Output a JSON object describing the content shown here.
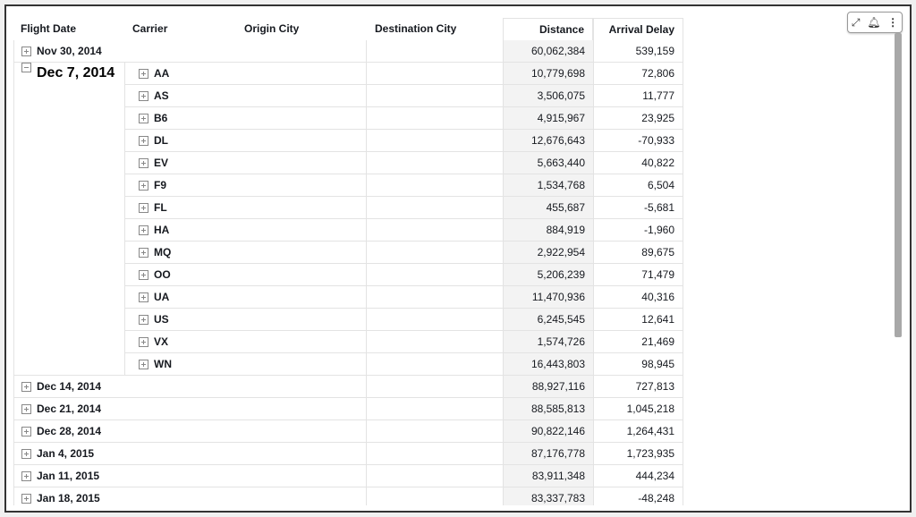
{
  "columns": {
    "flight_date": "Flight Date",
    "carrier": "Carrier",
    "origin_city": "Origin City",
    "destination_city": "Destination City",
    "distance": "Distance",
    "arrival_delay": "Arrival Delay"
  },
  "rows": [
    {
      "date": "Nov 30, 2014",
      "expanded": false,
      "distance": "60,062,384",
      "delay": "539,159"
    },
    {
      "date": "Dec 7, 2014",
      "expanded": true,
      "carriers": [
        {
          "carrier": "AA",
          "distance": "10,779,698",
          "delay": "72,806"
        },
        {
          "carrier": "AS",
          "distance": "3,506,075",
          "delay": "11,777"
        },
        {
          "carrier": "B6",
          "distance": "4,915,967",
          "delay": "23,925"
        },
        {
          "carrier": "DL",
          "distance": "12,676,643",
          "delay": "-70,933"
        },
        {
          "carrier": "EV",
          "distance": "5,663,440",
          "delay": "40,822"
        },
        {
          "carrier": "F9",
          "distance": "1,534,768",
          "delay": "6,504"
        },
        {
          "carrier": "FL",
          "distance": "455,687",
          "delay": "-5,681"
        },
        {
          "carrier": "HA",
          "distance": "884,919",
          "delay": "-1,960"
        },
        {
          "carrier": "MQ",
          "distance": "2,922,954",
          "delay": "89,675"
        },
        {
          "carrier": "OO",
          "distance": "5,206,239",
          "delay": "71,479"
        },
        {
          "carrier": "UA",
          "distance": "11,470,936",
          "delay": "40,316"
        },
        {
          "carrier": "US",
          "distance": "6,245,545",
          "delay": "12,641"
        },
        {
          "carrier": "VX",
          "distance": "1,574,726",
          "delay": "21,469"
        },
        {
          "carrier": "WN",
          "distance": "16,443,803",
          "delay": "98,945"
        }
      ]
    },
    {
      "date": "Dec 14, 2014",
      "expanded": false,
      "distance": "88,927,116",
      "delay": "727,813"
    },
    {
      "date": "Dec 21, 2014",
      "expanded": false,
      "distance": "88,585,813",
      "delay": "1,045,218"
    },
    {
      "date": "Dec 28, 2014",
      "expanded": false,
      "distance": "90,822,146",
      "delay": "1,264,431"
    },
    {
      "date": "Jan 4, 2015",
      "expanded": false,
      "distance": "87,176,778",
      "delay": "1,723,935"
    },
    {
      "date": "Jan 11, 2015",
      "expanded": false,
      "distance": "83,911,348",
      "delay": "444,234"
    },
    {
      "date": "Jan 18, 2015",
      "expanded": false,
      "distance": "83,337,783",
      "delay": "-48,248"
    }
  ],
  "toolbar": {
    "icons": [
      "expand-icon",
      "add-alert-icon",
      "more-options-icon"
    ]
  }
}
